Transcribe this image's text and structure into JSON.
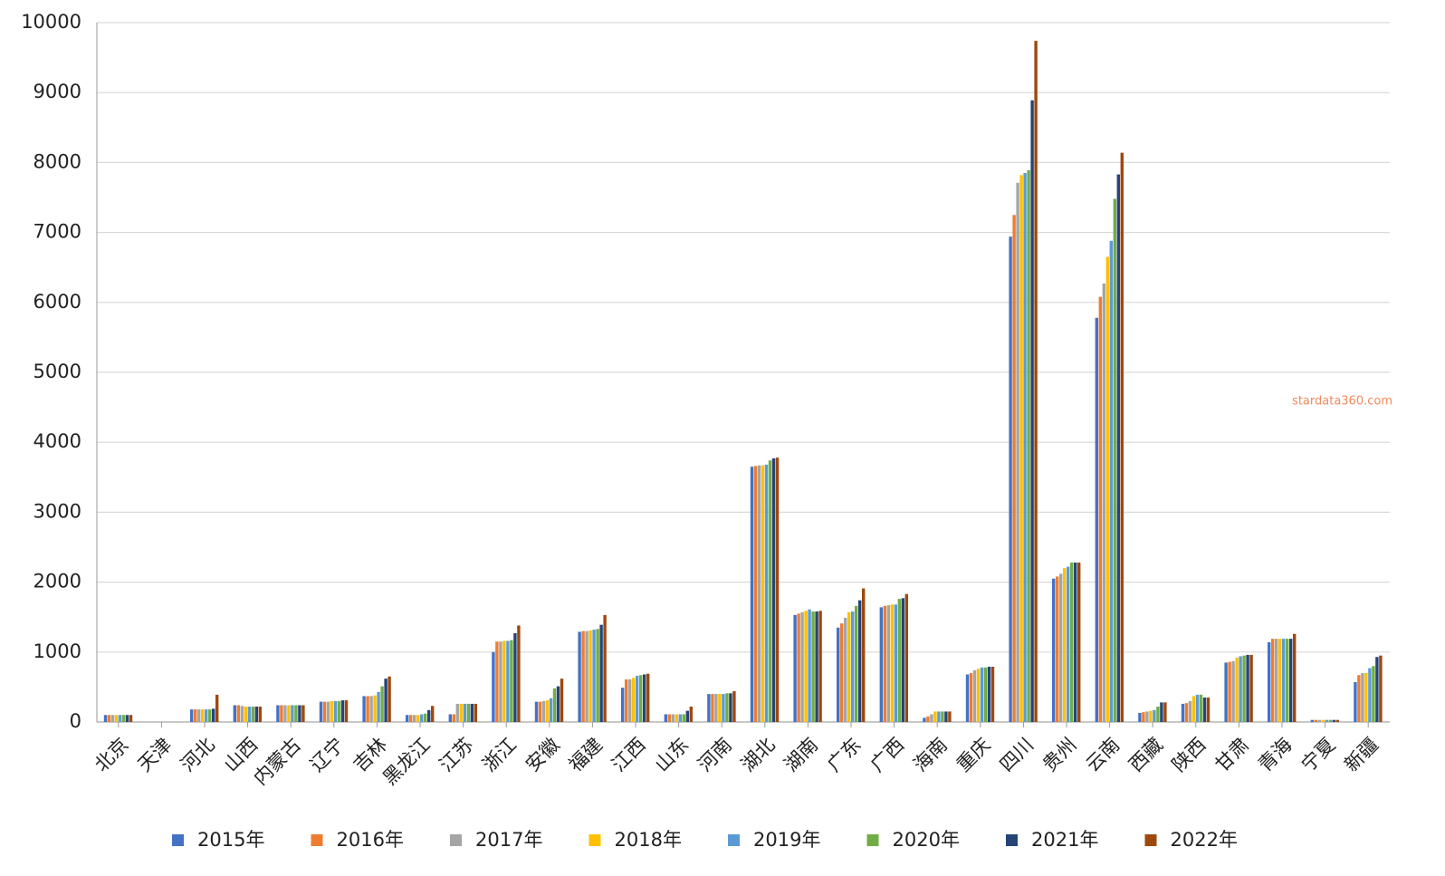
{
  "chart_data": {
    "type": "bar",
    "categories": [
      "北京",
      "天津",
      "河北",
      "山西",
      "内蒙古",
      "辽宁",
      "吉林",
      "黑龙江",
      "江苏",
      "浙江",
      "安徽",
      "福建",
      "江西",
      "山东",
      "河南",
      "湖北",
      "湖南",
      "广东",
      "广西",
      "海南",
      "重庆",
      "四川",
      "贵州",
      "云南",
      "西藏",
      "陕西",
      "甘肃",
      "青海",
      "宁夏",
      "新疆"
    ],
    "series": [
      {
        "name": "2015年",
        "color": "#4472c4",
        "values": [
          100,
          0,
          180,
          240,
          240,
          290,
          370,
          100,
          110,
          1000,
          290,
          1290,
          490,
          110,
          400,
          3650,
          1530,
          1350,
          1640,
          60,
          680,
          6940,
          2050,
          5780,
          130,
          260,
          850,
          1140,
          30,
          570
        ]
      },
      {
        "name": "2016年",
        "color": "#ed7d31",
        "values": [
          100,
          0,
          180,
          240,
          240,
          290,
          370,
          100,
          110,
          1150,
          290,
          1300,
          610,
          110,
          400,
          3660,
          1550,
          1410,
          1660,
          80,
          700,
          7250,
          2080,
          6080,
          140,
          270,
          860,
          1190,
          30,
          670
        ]
      },
      {
        "name": "2017年",
        "color": "#a5a5a5",
        "values": [
          100,
          0,
          180,
          230,
          240,
          290,
          370,
          100,
          260,
          1150,
          300,
          1300,
          610,
          110,
          400,
          3670,
          1570,
          1490,
          1670,
          110,
          740,
          7710,
          2120,
          6270,
          150,
          300,
          870,
          1190,
          30,
          700
        ]
      },
      {
        "name": "2018年",
        "color": "#ffc000",
        "values": [
          100,
          0,
          180,
          220,
          240,
          300,
          380,
          100,
          260,
          1160,
          310,
          1310,
          630,
          110,
          400,
          3670,
          1590,
          1570,
          1680,
          150,
          760,
          7820,
          2200,
          6650,
          160,
          370,
          920,
          1190,
          30,
          700
        ]
      },
      {
        "name": "2019年",
        "color": "#5b9bd5",
        "values": [
          100,
          0,
          180,
          220,
          240,
          300,
          430,
          110,
          260,
          1160,
          340,
          1320,
          660,
          110,
          400,
          3680,
          1610,
          1580,
          1680,
          150,
          780,
          7850,
          2220,
          6880,
          170,
          390,
          940,
          1190,
          30,
          770
        ]
      },
      {
        "name": "2020年",
        "color": "#70ad47",
        "values": [
          100,
          0,
          180,
          220,
          240,
          300,
          510,
          120,
          260,
          1170,
          480,
          1330,
          670,
          110,
          410,
          3740,
          1580,
          1660,
          1760,
          150,
          780,
          7890,
          2280,
          7480,
          220,
          390,
          950,
          1190,
          30,
          800
        ]
      },
      {
        "name": "2021年",
        "color": "#264478",
        "values": [
          100,
          0,
          190,
          220,
          240,
          310,
          620,
          170,
          260,
          1270,
          510,
          1390,
          680,
          160,
          410,
          3770,
          1580,
          1740,
          1770,
          150,
          790,
          8890,
          2280,
          7830,
          280,
          350,
          960,
          1190,
          30,
          930
        ]
      },
      {
        "name": "2022年",
        "color": "#9e480e",
        "values": [
          100,
          0,
          390,
          220,
          240,
          310,
          650,
          230,
          260,
          1380,
          620,
          1530,
          690,
          220,
          440,
          3780,
          1590,
          1910,
          1830,
          150,
          790,
          9740,
          2280,
          8140,
          280,
          350,
          960,
          1260,
          30,
          950
        ]
      }
    ],
    "ylim": [
      0,
      10000
    ],
    "yticks": [
      0,
      1000,
      2000,
      3000,
      4000,
      5000,
      6000,
      7000,
      8000,
      9000,
      10000
    ],
    "grid": true,
    "legend": "bottom",
    "watermark": "stardata360.com"
  }
}
